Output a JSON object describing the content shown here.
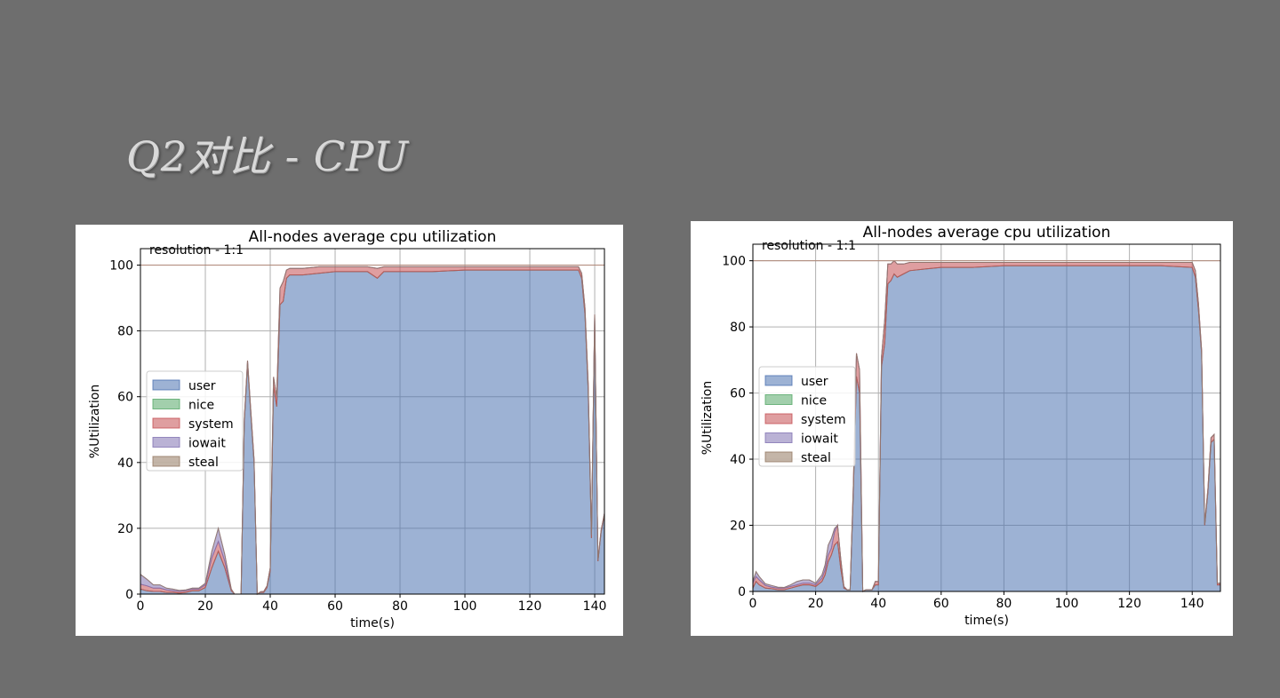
{
  "slide": {
    "title": "Q2对比 - CPU"
  },
  "chart_data": [
    {
      "type": "area",
      "stacked": true,
      "title": "All-nodes average cpu utilization",
      "annotation": "resolution - 1:1",
      "xlabel": "time(s)",
      "ylabel": "%Utilization",
      "xlim": [
        0,
        143
      ],
      "ylim": [
        0,
        105
      ],
      "xticks": [
        0,
        20,
        40,
        60,
        80,
        100,
        120,
        140
      ],
      "yticks": [
        0,
        20,
        40,
        60,
        80,
        100
      ],
      "grid": true,
      "reference_line": 100,
      "legend_position": "center-left",
      "x": [
        0,
        2,
        4,
        6,
        8,
        10,
        12,
        14,
        16,
        18,
        20,
        22,
        24,
        26,
        28,
        29,
        31,
        32,
        33,
        34,
        35,
        36,
        37,
        38,
        39,
        40,
        41,
        42,
        43,
        44,
        45,
        46,
        48,
        50,
        55,
        60,
        65,
        70,
        73,
        75,
        80,
        90,
        100,
        110,
        120,
        130,
        135,
        136,
        137,
        138,
        139,
        140,
        141,
        142,
        143
      ],
      "series": [
        {
          "name": "user",
          "color": "#4c72b0",
          "values": [
            1.5,
            1,
            0.8,
            0.8,
            0.5,
            0.5,
            0.3,
            0.5,
            1,
            1,
            2,
            8,
            13,
            8,
            1,
            0,
            0,
            52,
            70,
            55,
            40,
            0,
            0.5,
            0.5,
            2,
            7,
            63,
            57,
            88,
            89,
            96,
            97,
            97,
            97,
            97.5,
            98,
            98,
            98,
            96,
            98,
            98,
            98,
            98.5,
            98.5,
            98.5,
            98.5,
            98.5,
            96,
            85,
            62,
            17,
            84,
            10,
            19,
            24
          ]
        },
        {
          "name": "nice",
          "color": "#55a868",
          "values": [
            0,
            0,
            0,
            0,
            0,
            0,
            0,
            0,
            0,
            0,
            0,
            0,
            0,
            0,
            0,
            0,
            0,
            0,
            0,
            0,
            0,
            0,
            0,
            0,
            0,
            0,
            0,
            0,
            0,
            0,
            0,
            0,
            0,
            0,
            0,
            0,
            0,
            0,
            0,
            0,
            0,
            0,
            0,
            0,
            0,
            0,
            0,
            0,
            0,
            0,
            0,
            0,
            0,
            0,
            0
          ]
        },
        {
          "name": "system",
          "color": "#c44e52",
          "values": [
            1.5,
            1.5,
            1,
            1,
            0.8,
            0.5,
            0.5,
            0.5,
            0.5,
            0.5,
            0.8,
            3,
            3,
            2,
            0.5,
            0,
            0,
            1,
            1,
            1,
            1,
            0,
            0.2,
            0.3,
            0.5,
            1,
            3,
            3,
            5,
            6,
            2.5,
            2,
            2,
            2,
            2,
            1.5,
            1.5,
            1.5,
            3,
            1.5,
            1.5,
            1.5,
            1,
            1,
            1,
            1,
            1,
            1.5,
            2,
            2,
            1,
            1,
            0.5,
            0.5,
            0.5
          ]
        },
        {
          "name": "iowait",
          "color": "#8172b2",
          "values": [
            3,
            2,
            1,
            1,
            0.5,
            0.5,
            0.3,
            0.3,
            0.3,
            0.3,
            0.5,
            2,
            4,
            2,
            0,
            0,
            0,
            0,
            0,
            0,
            0,
            0,
            0,
            0,
            0,
            0,
            0,
            0,
            0,
            0,
            0,
            0,
            0,
            0,
            0,
            0,
            0,
            0,
            0,
            0,
            0,
            0,
            0,
            0,
            0,
            0,
            0,
            0,
            0,
            0,
            0,
            0,
            0,
            0,
            0
          ]
        },
        {
          "name": "steal",
          "color": "#937860",
          "values": [
            0,
            0,
            0,
            0,
            0,
            0,
            0,
            0,
            0,
            0,
            0,
            0,
            0,
            0,
            0,
            0,
            0,
            0,
            0,
            0,
            0,
            0,
            0,
            0,
            0,
            0,
            0,
            0,
            0,
            0,
            0,
            0,
            0,
            0,
            0,
            0,
            0,
            0,
            0,
            0,
            0,
            0,
            0,
            0,
            0,
            0,
            0,
            0,
            0,
            0,
            0,
            0,
            0,
            0,
            0
          ]
        }
      ]
    },
    {
      "type": "area",
      "stacked": true,
      "title": "All-nodes average cpu utilization",
      "annotation": "resolution - 1:1",
      "xlabel": "time(s)",
      "ylabel": "%Utilization",
      "xlim": [
        0,
        149
      ],
      "ylim": [
        0,
        105
      ],
      "xticks": [
        0,
        20,
        40,
        60,
        80,
        100,
        120,
        140
      ],
      "yticks": [
        0,
        20,
        40,
        60,
        80,
        100
      ],
      "grid": true,
      "reference_line": 100,
      "legend_position": "center-left",
      "x": [
        0,
        1,
        2,
        4,
        6,
        8,
        10,
        12,
        14,
        16,
        18,
        20,
        22,
        23,
        24,
        25,
        26,
        27,
        28,
        29,
        30,
        31,
        32,
        33,
        34,
        35,
        36,
        37,
        38,
        39,
        40,
        41,
        42,
        43,
        44,
        45,
        46,
        48,
        50,
        55,
        60,
        70,
        80,
        90,
        100,
        110,
        120,
        130,
        140,
        141,
        142,
        143,
        144,
        145,
        146,
        147,
        148,
        149
      ],
      "series": [
        {
          "name": "user",
          "color": "#4c72b0",
          "values": [
            1,
            3,
            2,
            1,
            0.8,
            0.5,
            0.5,
            1,
            1.5,
            2,
            2,
            1.5,
            3,
            5,
            9,
            11,
            14,
            15,
            7,
            1,
            0.5,
            0.5,
            30,
            65,
            60,
            0,
            0.5,
            0.5,
            0.5,
            2,
            2,
            68,
            75,
            93,
            94,
            96,
            95,
            96,
            97,
            97.5,
            98,
            98,
            98.5,
            98.5,
            98.5,
            98.5,
            98.5,
            98.5,
            98,
            95,
            85,
            72,
            20,
            30,
            45,
            46,
            2,
            2
          ]
        },
        {
          "name": "nice",
          "color": "#55a868",
          "values": [
            0,
            0,
            0,
            0,
            0,
            0,
            0,
            0,
            0,
            0,
            0,
            0,
            0,
            0,
            0,
            0,
            0,
            0,
            0,
            0,
            0,
            0,
            0,
            0,
            0,
            0,
            0,
            0,
            0,
            0,
            0,
            0,
            0,
            0,
            0,
            0,
            0,
            0,
            0,
            0,
            0,
            0,
            0,
            0,
            0,
            0,
            0,
            0,
            0,
            0,
            0,
            0,
            0,
            0,
            0,
            0,
            0,
            0
          ]
        },
        {
          "name": "system",
          "color": "#c44e52",
          "values": [
            1.5,
            1.5,
            1.5,
            0.8,
            0.5,
            0.5,
            0.5,
            0.5,
            0.5,
            0.5,
            0.5,
            0.5,
            1,
            1.5,
            2,
            2,
            4,
            5,
            3,
            0.5,
            0,
            0,
            2,
            7,
            7,
            0,
            0,
            0,
            0,
            1,
            1,
            3,
            7,
            6,
            5,
            4,
            4,
            3,
            2.5,
            2,
            1.5,
            1.5,
            1,
            1,
            1,
            1,
            1,
            1,
            1.5,
            2,
            2,
            1,
            0.5,
            1,
            1.5,
            1.5,
            0.5,
            0.5
          ]
        },
        {
          "name": "iowait",
          "color": "#8172b2",
          "values": [
            0.5,
            1.5,
            1,
            0.5,
            0.5,
            0.3,
            0.2,
            0.5,
            1,
            1,
            1,
            0.5,
            1,
            1.5,
            3,
            3,
            1,
            0,
            0,
            0,
            0,
            0,
            0,
            0,
            0,
            0,
            0,
            0,
            0,
            0,
            0,
            0,
            0,
            0,
            0,
            0,
            0,
            0,
            0,
            0,
            0,
            0,
            0,
            0,
            0,
            0,
            0,
            0,
            0,
            0,
            0,
            0,
            0,
            0,
            0,
            0,
            0,
            0
          ]
        },
        {
          "name": "steal",
          "color": "#937860",
          "values": [
            0,
            0,
            0,
            0,
            0,
            0,
            0,
            0,
            0,
            0,
            0,
            0,
            0,
            0,
            0,
            0,
            0,
            0,
            0,
            0,
            0,
            0,
            0,
            0,
            0,
            0,
            0,
            0,
            0,
            0,
            0,
            0,
            0,
            0,
            0,
            0,
            0,
            0,
            0,
            0,
            0,
            0,
            0,
            0,
            0,
            0,
            0,
            0,
            0,
            0,
            0,
            0,
            0,
            0,
            0,
            0,
            0,
            0
          ]
        }
      ]
    }
  ]
}
